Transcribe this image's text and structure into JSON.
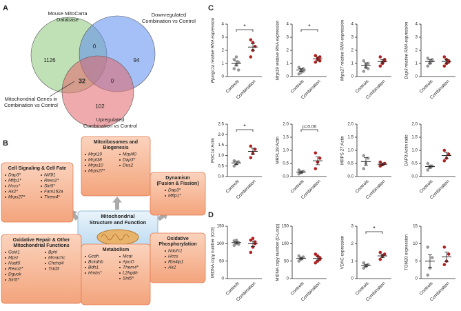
{
  "panel_labels": [
    "A",
    "B",
    "C",
    "D"
  ],
  "venn": {
    "sets": [
      {
        "label": [
          "Mouse MitoCarta",
          "Database"
        ],
        "color": "#8cc97a"
      },
      {
        "label": [
          "Downregulated",
          "Combination vs Control"
        ],
        "color": "#5b8def"
      },
      {
        "label": [
          "Upregulated",
          "Combination vs Control"
        ],
        "color": "#e2656a"
      }
    ],
    "intersection_label": [
      "Mitochondrial Genes in",
      "Combination vs Control"
    ],
    "counts": [
      1126,
      0,
      94,
      32,
      0,
      102
    ]
  },
  "diagram": {
    "center": [
      "Mitochondrial",
      "Structure and Function"
    ],
    "boxes": [
      {
        "title": [
          "Mitoribosomes and",
          "Biogenesis"
        ],
        "genes": [
          [
            "Mrpl19",
            "Mrpl38",
            "Mrps10",
            "Mrps27*"
          ],
          [
            "Mrpl40",
            "Dap3*",
            "Dus2"
          ]
        ]
      },
      {
        "title": [
          "Cell Signaling & Cell Fate"
        ],
        "genes": [
          [
            "Dap3*",
            "Mffp1*",
            "Hccs*",
            "Ak2*",
            "Mrps27*"
          ],
          [
            "Nif3l1",
            "Rexo2*",
            "Sirt5*",
            "Fam162a",
            "Them4*"
          ]
        ]
      },
      {
        "title": [
          "Dynamism",
          "(Fusion & Fission)"
        ],
        "genes": [
          [
            "Dap3*",
            "Mffp1*"
          ]
        ]
      },
      {
        "title": [
          "Oxidative Repair & Other",
          "Mitochondrial Functions"
        ],
        "genes": [
          [
            "Gstk1",
            "Mpst",
            "Nudt5",
            "Rexo2*",
            "Dguok",
            "Sirt5*"
          ],
          [
            "Bphl",
            "Mmachc",
            "Chchd4",
            "Tstd3"
          ]
        ]
      },
      {
        "title": [
          "Metabolism"
        ],
        "genes": [
          [
            "Gcdh",
            "Bckdhb",
            "Bdh1",
            "Hmbs*"
          ],
          [
            "Mcat",
            "ApoO",
            "Them4*",
            "L2hgdh",
            "Sirt5*"
          ]
        ]
      },
      {
        "title": [
          "Oxidative",
          "Phosphorylation"
        ],
        "genes": [
          [
            "Ndufc1",
            "Hccs",
            "Rtn4ip1",
            "Ak2"
          ]
        ]
      }
    ]
  },
  "chart_data": [
    {
      "type": "strip",
      "ylabel": "Ppargc1a relative RNA expression",
      "categories": [
        "Controls",
        "Combination"
      ],
      "colors": [
        "#999999",
        "#b22222"
      ],
      "points": [
        [
          0.6,
          0.9,
          1.1,
          1.3,
          1.5,
          0.5
        ],
        [
          1.5,
          2.0,
          2.3,
          2.8,
          2.6
        ]
      ],
      "mean": [
        1.0,
        2.25
      ],
      "sem": [
        0.2,
        0.25
      ],
      "ylim": [
        0,
        4
      ],
      "yticks": [
        0,
        1,
        2,
        3,
        4
      ],
      "annotation": "*"
    },
    {
      "type": "strip",
      "ylabel": "Mrpl19 relative RNA expression",
      "categories": [
        "Controls",
        "Combination"
      ],
      "colors": [
        "#999999",
        "#b22222"
      ],
      "points": [
        [
          0.2,
          0.5,
          0.6,
          0.7,
          0.3,
          0.4
        ],
        [
          1.1,
          1.3,
          1.5,
          1.6,
          1.4,
          1.2
        ]
      ],
      "mean": [
        0.5,
        1.35
      ],
      "sem": [
        0.1,
        0.15
      ],
      "ylim": [
        0,
        4
      ],
      "yticks": [
        0,
        1,
        2,
        3,
        4
      ],
      "annotation": "*"
    },
    {
      "type": "strip",
      "ylabel": "Mrps27 relative RNA expression",
      "categories": [
        "Controls",
        "Combination"
      ],
      "colors": [
        "#999999",
        "#b22222"
      ],
      "points": [
        [
          0.4,
          0.7,
          1.0,
          1.2,
          0.9,
          0.6
        ],
        [
          0.8,
          1.0,
          1.2,
          1.5,
          1.1,
          1.3
        ]
      ],
      "mean": [
        0.85,
        1.15
      ],
      "sem": [
        0.2,
        0.15
      ],
      "ylim": [
        0,
        4
      ],
      "yticks": [
        0,
        1,
        2,
        3,
        4
      ]
    },
    {
      "type": "strip",
      "ylabel": "Dap3 relative RNA expression",
      "categories": [
        "Controls",
        "Combination"
      ],
      "colors": [
        "#999999",
        "#b22222"
      ],
      "points": [
        [
          0.8,
          1.0,
          1.3,
          1.4,
          1.1,
          1.2
        ],
        [
          0.8,
          1.0,
          1.2,
          1.5,
          1.3,
          1.1
        ]
      ],
      "mean": [
        1.15,
        1.15
      ],
      "sem": [
        0.15,
        0.15
      ],
      "ylim": [
        0,
        4
      ],
      "yticks": [
        0,
        1,
        2,
        3,
        4
      ]
    },
    {
      "type": "strip",
      "ylabel": "PGC1α:Actin",
      "categories": [
        "Controls",
        "Combination"
      ],
      "colors": [
        "#999999",
        "#b22222"
      ],
      "points": [
        [
          0.5,
          0.6,
          0.7,
          0.75
        ],
        [
          0.9,
          1.1,
          1.3,
          1.45
        ]
      ],
      "mean": [
        0.65,
        1.2
      ],
      "sem": [
        0.08,
        0.15
      ],
      "ylim": [
        0,
        2.5
      ],
      "yticks": [
        {
          "value": 0,
          "label": "0.0"
        },
        {
          "value": 0.5,
          "label": "0.5"
        },
        {
          "value": 1,
          "label": "1.0"
        },
        {
          "value": 1.5,
          "label": "1.5"
        },
        {
          "value": 2,
          "label": "2.0"
        },
        {
          "value": 2.5,
          "label": "2.5"
        }
      ],
      "annotation": "*"
    },
    {
      "type": "strip",
      "ylabel": "MRPL19:Actin",
      "categories": [
        "Controls",
        "Combination"
      ],
      "colors": [
        "#999999",
        "#b22222"
      ],
      "points": [
        [
          0.1,
          0.15,
          0.2,
          0.25
        ],
        [
          0.3,
          0.55,
          0.7,
          0.9
        ]
      ],
      "mean": [
        0.17,
        0.6
      ],
      "sem": [
        0.04,
        0.15
      ],
      "ylim": [
        0,
        2
      ],
      "yticks": [
        {
          "value": 0,
          "label": "0.0"
        },
        {
          "value": 0.5,
          "label": "0.5"
        },
        {
          "value": 1,
          "label": "1.0"
        },
        {
          "value": 1.5,
          "label": "1.5"
        },
        {
          "value": 2,
          "label": "2.0"
        }
      ],
      "annotation": "p=0.06"
    },
    {
      "type": "strip",
      "ylabel": "MRPS 27:Actin",
      "categories": [
        "Controls",
        "Combination"
      ],
      "colors": [
        "#999999",
        "#b22222"
      ],
      "points": [
        [
          0.3,
          0.5,
          0.7,
          0.8
        ],
        [
          0.4,
          0.45,
          0.5,
          0.55
        ]
      ],
      "mean": [
        0.57,
        0.47
      ],
      "sem": [
        0.15,
        0.05
      ],
      "ylim": [
        0,
        2
      ],
      "yticks": [
        {
          "value": 0,
          "label": "0.0"
        },
        {
          "value": 0.5,
          "label": "0.5"
        },
        {
          "value": 1,
          "label": "1.0"
        },
        {
          "value": 1.5,
          "label": "1.5"
        },
        {
          "value": 2,
          "label": "2.0"
        }
      ]
    },
    {
      "type": "strip",
      "ylabel": "DAP3:Actin ratio",
      "categories": [
        "Controls",
        "Combination"
      ],
      "colors": [
        "#999999",
        "#b22222"
      ],
      "points": [
        [
          0.25,
          0.35,
          0.4,
          0.5
        ],
        [
          0.6,
          0.7,
          0.85,
          1.0
        ]
      ],
      "mean": [
        0.38,
        0.8
      ],
      "sem": [
        0.06,
        0.12
      ],
      "ylim": [
        0,
        2
      ],
      "yticks": [
        {
          "value": 0,
          "label": "0.0"
        },
        {
          "value": 0.5,
          "label": "0.5"
        },
        {
          "value": 1,
          "label": "1.0"
        },
        {
          "value": 1.5,
          "label": "1.5"
        },
        {
          "value": 2,
          "label": "2.0"
        }
      ]
    },
    {
      "type": "strip",
      "ylabel": "MtDNA copy number (COI)",
      "categories": [
        "Controls",
        "Combination"
      ],
      "colors": [
        "#999999",
        "#b22222"
      ],
      "points": [
        [
          95,
          100,
          103,
          108,
          110,
          98
        ],
        [
          75,
          90,
          100,
          110,
          115,
          105
        ]
      ],
      "mean": [
        103,
        100
      ],
      "sem": [
        3,
        8
      ],
      "ylim": [
        0,
        150
      ],
      "yticks": [
        0,
        50,
        100,
        150
      ]
    },
    {
      "type": "strip",
      "ylabel": "MtDNA copy number (D-Loop)",
      "categories": [
        "Controls",
        "Combination"
      ],
      "colors": [
        "#999999",
        "#b22222"
      ],
      "points": [
        [
          50,
          55,
          60,
          65,
          58,
          62
        ],
        [
          45,
          50,
          60,
          70,
          65,
          55
        ]
      ],
      "mean": [
        58,
        58
      ],
      "sem": [
        3,
        5
      ],
      "ylim": [
        0,
        150
      ],
      "yticks": [
        0,
        50,
        100,
        150
      ]
    },
    {
      "type": "strip",
      "ylabel": "VDAC expression",
      "categories": [
        "Controls",
        "Combination"
      ],
      "colors": [
        "#999999",
        "#b22222"
      ],
      "points": [
        [
          0.6,
          0.7,
          0.8,
          0.9
        ],
        [
          1.1,
          1.3,
          1.4,
          1.5
        ]
      ],
      "mean": [
        0.75,
        1.3
      ],
      "sem": [
        0.07,
        0.1
      ],
      "ylim": [
        0,
        3
      ],
      "yticks": [
        0,
        1,
        2,
        3
      ],
      "annotation": "*"
    },
    {
      "type": "strip",
      "ylabel": "TOM20 expression",
      "categories": [
        "Controls",
        "Combination"
      ],
      "colors": [
        "#999999",
        "#b22222"
      ],
      "points": [
        [
          1,
          3,
          6,
          9
        ],
        [
          4,
          5,
          7,
          9
        ]
      ],
      "mean": [
        5,
        6.2
      ],
      "sem": [
        1.8,
        1.4
      ],
      "ylim": [
        0,
        15
      ],
      "yticks": [
        0,
        5,
        10,
        15
      ]
    }
  ]
}
